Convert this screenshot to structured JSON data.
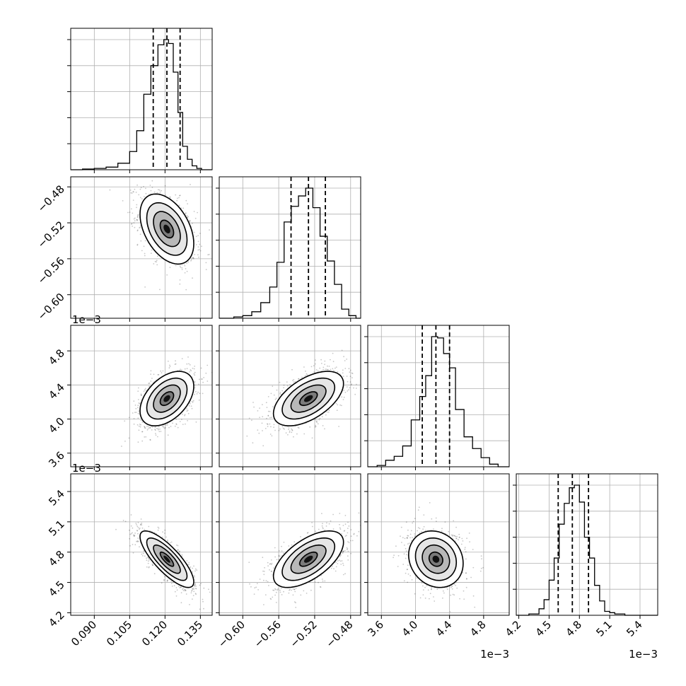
{
  "chart_data": {
    "type": "corner",
    "title": "",
    "grid": true,
    "parameters": [
      {
        "index": 0,
        "range": [
          0.08,
          0.14
        ],
        "ticks": [
          "0.090",
          "0.105",
          "0.120",
          "0.135"
        ],
        "tick_values": [
          0.09,
          0.105,
          0.12,
          0.135
        ],
        "offset_text": "",
        "quantiles": [
          0.115,
          0.1208,
          0.1264
        ]
      },
      {
        "index": 1,
        "range": [
          -0.6262,
          -0.4688
        ],
        "ticks": [
          "−0.60",
          "−0.56",
          "−0.52",
          "−0.48"
        ],
        "tick_values": [
          -0.6,
          -0.56,
          -0.52,
          -0.48
        ],
        "offset_text": "",
        "quantiles": [
          -0.5463,
          -0.5269,
          -0.5081
        ]
      },
      {
        "index": 2,
        "range": [
          3.44,
          5.1
        ],
        "ticks": [
          "3.6",
          "4.0",
          "4.4",
          "4.8"
        ],
        "tick_values": [
          3.6,
          4.0,
          4.4,
          4.8
        ],
        "offset_text": "1e−3",
        "quantiles": [
          4.08,
          4.24,
          4.4
        ]
      },
      {
        "index": 3,
        "range": [
          4.175,
          5.575
        ],
        "ticks": [
          "4.2",
          "4.5",
          "4.8",
          "5.1",
          "5.4"
        ],
        "tick_values": [
          4.2,
          4.5,
          4.8,
          5.1,
          5.4
        ],
        "offset_text": "1e−3",
        "quantiles": [
          4.59,
          4.73,
          4.89
        ]
      }
    ],
    "histograms": [
      {
        "param": 0,
        "bin_edges": [
          0.08,
          0.085,
          0.09,
          0.095,
          0.1,
          0.105,
          0.108,
          0.111,
          0.114,
          0.117,
          0.1195,
          0.1215,
          0.1235,
          0.1255,
          0.1275,
          0.1295,
          0.1315,
          0.1335,
          0.1355,
          0.14
        ],
        "counts": [
          0,
          0.005,
          0.01,
          0.02,
          0.05,
          0.14,
          0.3,
          0.58,
          0.8,
          0.96,
          1.0,
          0.97,
          0.75,
          0.44,
          0.18,
          0.08,
          0.03,
          0.01,
          0
        ]
      },
      {
        "param": 1,
        "bin_edges": [
          -0.6262,
          -0.61,
          -0.6,
          -0.59,
          -0.58,
          -0.57,
          -0.562,
          -0.554,
          -0.546,
          -0.538,
          -0.53,
          -0.522,
          -0.514,
          -0.506,
          -0.498,
          -0.49,
          -0.482,
          -0.474,
          -0.4688
        ],
        "counts": [
          0,
          0.01,
          0.02,
          0.05,
          0.12,
          0.24,
          0.43,
          0.74,
          0.86,
          0.94,
          1.0,
          0.85,
          0.63,
          0.44,
          0.26,
          0.07,
          0.02,
          0
        ]
      },
      {
        "param": 2,
        "bin_edges": [
          3.44,
          3.55,
          3.65,
          3.75,
          3.85,
          3.95,
          4.05,
          4.12,
          4.19,
          4.26,
          4.33,
          4.4,
          4.47,
          4.57,
          4.67,
          4.77,
          4.87,
          4.97,
          5.1
        ],
        "counts": [
          0,
          0.01,
          0.05,
          0.08,
          0.16,
          0.36,
          0.54,
          0.7,
          1.0,
          0.99,
          0.87,
          0.76,
          0.44,
          0.23,
          0.14,
          0.07,
          0.02,
          0
        ]
      },
      {
        "param": 3,
        "bin_edges": [
          4.175,
          4.3,
          4.4,
          4.45,
          4.5,
          4.55,
          4.6,
          4.65,
          4.7,
          4.75,
          4.8,
          4.85,
          4.9,
          4.95,
          5.0,
          5.05,
          5.1,
          5.15,
          5.25,
          5.575
        ],
        "counts": [
          0,
          0.01,
          0.05,
          0.12,
          0.27,
          0.44,
          0.7,
          0.86,
          0.98,
          1.0,
          0.87,
          0.6,
          0.44,
          0.23,
          0.11,
          0.03,
          0.02,
          0.01,
          0
        ]
      }
    ],
    "pairs": [
      {
        "x": 0,
        "y": 1,
        "center": [
          0.1208,
          -0.5269
        ],
        "sigma": [
          0.0057,
          0.0195
        ],
        "rho": -0.42
      },
      {
        "x": 0,
        "y": 2,
        "center": [
          0.1208,
          4.24
        ],
        "sigma": [
          0.0057,
          0.16
        ],
        "rho": 0.45
      },
      {
        "x": 1,
        "y": 2,
        "center": [
          -0.5269,
          4.24
        ],
        "sigma": [
          0.0195,
          0.16
        ],
        "rho": 0.55
      },
      {
        "x": 0,
        "y": 3,
        "center": [
          0.1208,
          4.73
        ],
        "sigma": [
          0.0057,
          0.14
        ],
        "rho": -0.8
      },
      {
        "x": 1,
        "y": 3,
        "center": [
          -0.5269,
          4.73
        ],
        "sigma": [
          0.0195,
          0.14
        ],
        "rho": 0.6
      },
      {
        "x": 2,
        "y": 3,
        "center": [
          4.24,
          4.73
        ],
        "sigma": [
          0.16,
          0.14
        ],
        "rho": -0.15
      }
    ],
    "contour_levels_sigma": [
      0.5,
      1.0,
      1.5,
      2.0
    ],
    "colors": {
      "hist_line": "#000000",
      "quantile_line": "#000000",
      "contour": "#000000",
      "grid": "#b0b0b0",
      "points": "#000000"
    }
  }
}
